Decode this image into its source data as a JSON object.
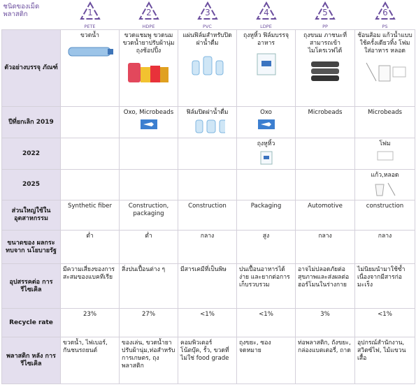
{
  "header": {
    "title": "ชนิดของเม็ด พลาสติก",
    "columns": [
      {
        "number": "1",
        "code": "PETE"
      },
      {
        "number": "2",
        "code": "HDPE"
      },
      {
        "number": "3",
        "code": "PVC"
      },
      {
        "number": "4",
        "code": "LDPE"
      },
      {
        "number": "5",
        "code": "PP"
      },
      {
        "number": "6",
        "code": "PS"
      }
    ]
  },
  "table": {
    "rows": [
      {
        "label": "ตัวอย่างบรรจุ ภัณฑ์",
        "align": "center",
        "cells": [
          "ขวดน้ำ",
          "ขวดแชมพู ขวดนม ขวดน้ำยาปรับผ้านุ่ม ถุงช้อปปิ้ง",
          "แผ่นฟิล์มสำหรับปิดฝาน้ำดื่ม",
          "ถุงหูหิ้ว ฟิล์มบรรจุอาหาร",
          "ถุงขนม ภาชนะที่สามารถเข้าไมโครเวฟได้",
          "ช้อนส้อม แก้วน้ำแบบใช้ครั้งเดียวทิ้ง โฟมใส่อาหาร หลอด"
        ]
      },
      {
        "label": "ปีที่ยกเลิก 2019",
        "align": "center",
        "cells": [
          null,
          "Oxo, Microbeads",
          "ฟิล์มปิดฝาน้ำดื่ม",
          "Oxo",
          "Microbeads",
          "Microbeads"
        ]
      },
      {
        "label": "2022",
        "align": "center",
        "cells": [
          null,
          null,
          null,
          "ถุงหูหิ้ว",
          null,
          "โฟม"
        ]
      },
      {
        "label": "2025",
        "align": "center",
        "cells": [
          null,
          null,
          null,
          null,
          null,
          "แก้ว,หลอด"
        ]
      },
      {
        "label": "ส่วนใหญ่ใช้ใน อุตสาหกรรม",
        "align": "center",
        "cells": [
          "Synthetic fiber",
          "Construction, packaging",
          "Construction",
          "Packaging",
          "Automotive",
          "construction"
        ]
      },
      {
        "label": "ขนาดของ ผลกระทบจาก นโยบายรัฐ",
        "align": "center",
        "cells": [
          "ต่ำ",
          "ต่ำ",
          "กลาง",
          "สูง",
          "กลาง",
          "กลาง"
        ]
      },
      {
        "label": "อุปสรรคต่อ การรีไซเคิล",
        "align": "left",
        "cells": [
          "มีความเสี่ยงของการสะสมของแบคทีเรีย",
          "สิ่งปนเปื้อนต่าง ๆ",
          "มีสารเคมีที่เป็นพิษ",
          "ปนเปื้อนอาหารได้ง่าย และยากต่อการเก็บรวบรวม",
          "อาจไม่ปลอดภัยต่อสุขภาพและส่งผลต่อฮอร์โมนในร่างกาย",
          "ไม่นิยมนำมาใช้ซ้ำเนื่องจากมีสารก่อมะเร็ง"
        ]
      },
      {
        "label": "Recycle rate",
        "align": "center",
        "cells": [
          "23%",
          "27%",
          "<1%",
          "<1%",
          "3%",
          "<1%"
        ]
      },
      {
        "label": "พลาสติก หลัง การรีไซเคิล",
        "align": "left",
        "cells": [
          "ขวดน้ำ, ไฟเบอร์, กันชนรถยนต์",
          "ของเล่น, ขวดน้ำยาปรับผ้านุ่ม,ท่อสำหรับการเกษตร, ถุงพลาสติก",
          "คอมพิวเตอร์ โน้ตบุ๊ค, รั้ว, ขวดที่ไม่ใช่ food grade",
          "ถุงขยะ, ซองจดหมาย",
          "ท่อพลาสติก, ถังขยะ, กล่องแบตเตอรี่, ถาด",
          "อุปกรณ์สำนักงาน, สวิตซ์ไฟ, ไม้แขวนเสื้อ"
        ]
      }
    ]
  }
}
